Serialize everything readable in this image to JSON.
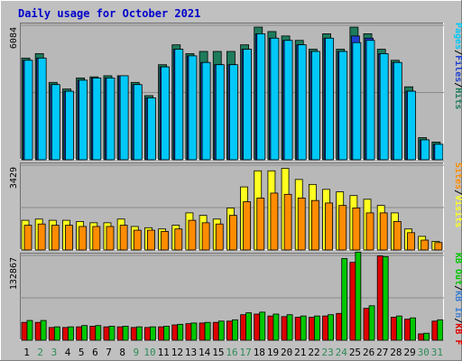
{
  "chart_data": {
    "type": "bar",
    "title": "Daily usage for October 2021",
    "days": [
      "1",
      "2",
      "3",
      "4",
      "5",
      "6",
      "7",
      "8",
      "9",
      "10",
      "11",
      "12",
      "13",
      "14",
      "15",
      "16",
      "17",
      "18",
      "19",
      "20",
      "21",
      "22",
      "23",
      "24",
      "25",
      "26",
      "27",
      "28",
      "29",
      "30",
      "31"
    ],
    "weekend_days": [
      "2",
      "3",
      "9",
      "10",
      "16",
      "17",
      "23",
      "24",
      "30",
      "31"
    ],
    "colors": {
      "title": "#0000cc",
      "frame_bg": "#c0c0c0",
      "plot_bg": "#b8b8b8",
      "hits": "#1e7b5c",
      "files": "#1f3fcf",
      "pages": "#00c8f8",
      "visits": "#ffff20",
      "sites": "#ff8c00",
      "kb_f": "#e00000",
      "kb_in": "#3b7fd0",
      "kb_out": "#00c800",
      "weekday_label": "#000000",
      "weekend_label": "#2e8b57"
    },
    "panels": [
      {
        "id": "hits-files-pages",
        "max_label": "6084",
        "ymax": 6084,
        "legend": [
          {
            "text": "Hits",
            "color": "#1e7b5c"
          },
          {
            "text": "Files",
            "color": "#1f3fcf"
          },
          {
            "text": "Pages",
            "color": "#00c8f8"
          }
        ],
        "series": [
          {
            "name": "Hits",
            "color": "#1e7b5c",
            "values": [
              4600,
              4800,
              3500,
              3200,
              3700,
              3750,
              3800,
              3800,
              3500,
              2900,
              4300,
              5200,
              4800,
              4900,
              4900,
              4900,
              5200,
              6000,
              5800,
              5600,
              5400,
              5000,
              5700,
              5000,
              6000,
              5700,
              5000,
              4500,
              3300,
              1000,
              800
            ]
          },
          {
            "name": "Files",
            "color": "#1f3fcf",
            "values": [
              4500,
              4600,
              3400,
              3100,
              3600,
              3700,
              3700,
              3800,
              3400,
              2800,
              4200,
              5000,
              4700,
              4400,
              4300,
              4300,
              5000,
              5700,
              5500,
              5400,
              5200,
              4900,
              5500,
              4900,
              5600,
              5500,
              4800,
              4400,
              3100,
              900,
              700
            ]
          },
          {
            "name": "Pages",
            "color": "#00c8f8",
            "values": [
              4500,
              4600,
              3400,
              3100,
              3600,
              3700,
              3700,
              3800,
              3400,
              2800,
              4200,
              5000,
              4700,
              4400,
              4300,
              4300,
              5000,
              5700,
              5500,
              5400,
              5200,
              4900,
              5500,
              4900,
              5300,
              5400,
              4800,
              4400,
              3100,
              900,
              700
            ]
          }
        ]
      },
      {
        "id": "visits-sites",
        "max_label": "3429",
        "ymax": 3429,
        "legend": [
          {
            "text": "Visits",
            "color": "#ffff20"
          },
          {
            "text": "Sites",
            "color": "#ff8c00"
          }
        ],
        "series": [
          {
            "name": "Visits",
            "color": "#ffff20",
            "values": [
              1200,
              1250,
              1200,
              1200,
              1150,
              1100,
              1100,
              1250,
              950,
              900,
              850,
              1000,
              1500,
              1400,
              1250,
              1700,
              2550,
              3200,
              3200,
              3300,
              2850,
              2650,
              2450,
              2350,
              2200,
              2050,
              1800,
              1500,
              850,
              550,
              350
            ]
          },
          {
            "name": "Sites",
            "color": "#ff8c00",
            "values": [
              1000,
              1050,
              1000,
              1000,
              950,
              950,
              950,
              1000,
              800,
              800,
              750,
              850,
              1200,
              1100,
              1050,
              1400,
              1950,
              2100,
              2300,
              2250,
              2100,
              2000,
              1900,
              1800,
              1700,
              1500,
              1500,
              1150,
              700,
              400,
              300
            ]
          }
        ]
      },
      {
        "id": "kbytes",
        "max_label": "132867",
        "ymax": 132867,
        "legend": [
          {
            "text": "KB F",
            "color": "#e00000"
          },
          {
            "text": "KB In",
            "color": "#3b7fd0"
          },
          {
            "text": "KB Out",
            "color": "#00c800"
          }
        ],
        "series": [
          {
            "name": "KB F",
            "color": "#e00000",
            "values": [
              28000,
              28000,
              20000,
              20000,
              21000,
              22000,
              21000,
              21000,
              20000,
              20000,
              21000,
              24000,
              26000,
              27000,
              28000,
              30000,
              40000,
              41000,
              38000,
              37000,
              36000,
              36000,
              38000,
              42000,
              122000,
              50000,
              132000,
              36000,
              33000,
              10000,
              30000
            ]
          },
          {
            "name": "KB In",
            "color": "#3b7fd0",
            "values": [
              0,
              0,
              0,
              0,
              0,
              0,
              0,
              0,
              0,
              0,
              0,
              0,
              0,
              0,
              0,
              0,
              0,
              0,
              0,
              0,
              0,
              0,
              0,
              0,
              0,
              0,
              0,
              0,
              0,
              0,
              0
            ]
          },
          {
            "name": "KB Out",
            "color": "#00c800",
            "values": [
              31000,
              31000,
              21000,
              21000,
              23000,
              23000,
              22000,
              22000,
              21000,
              21000,
              22000,
              25000,
              27000,
              28000,
              30000,
              32000,
              43000,
              44000,
              41000,
              40000,
              38000,
              38000,
              40000,
              128000,
              138000,
              54000,
              131000,
              38000,
              35000,
              11000,
              32000
            ]
          }
        ]
      }
    ]
  }
}
